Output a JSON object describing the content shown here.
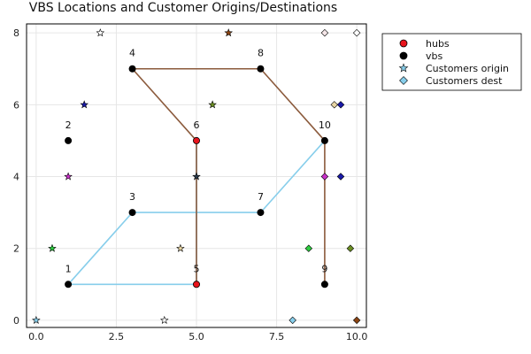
{
  "chart_data": {
    "type": "scatter",
    "title": "VBS Locations and Customer Origins/Destinations",
    "xlabel": "",
    "ylabel": "",
    "xlim": [
      -0.3,
      10.3
    ],
    "ylim": [
      -0.2,
      8.25
    ],
    "xticks": [
      0,
      2.5,
      5,
      7.5,
      10
    ],
    "xtick_labels": [
      "0.0",
      "2.5",
      "5.0",
      "7.5",
      "10.0"
    ],
    "yticks": [
      0,
      2,
      4,
      6,
      8
    ],
    "ytick_labels": [
      "0",
      "2",
      "4",
      "6",
      "8"
    ],
    "grid": true,
    "legend_position": "outer-top-right",
    "legend": [
      {
        "label": "hubs",
        "marker": "circle",
        "color": "#e8141c"
      },
      {
        "label": "vbs",
        "marker": "circle",
        "color": "#000000"
      },
      {
        "label": "Customers origin",
        "marker": "star",
        "color": "#87ceeb"
      },
      {
        "label": "Customers dest",
        "marker": "diamond",
        "color": "#87ceeb"
      }
    ],
    "nodes": [
      {
        "id": "1",
        "x": 1,
        "y": 1,
        "hub": false
      },
      {
        "id": "2",
        "x": 1,
        "y": 5,
        "hub": false
      },
      {
        "id": "3",
        "x": 3,
        "y": 3,
        "hub": false
      },
      {
        "id": "4",
        "x": 3,
        "y": 7,
        "hub": false
      },
      {
        "id": "5",
        "x": 5,
        "y": 1,
        "hub": true
      },
      {
        "id": "6",
        "x": 5,
        "y": 5,
        "hub": true
      },
      {
        "id": "7",
        "x": 7,
        "y": 3,
        "hub": false
      },
      {
        "id": "8",
        "x": 7,
        "y": 7,
        "hub": false
      },
      {
        "id": "9",
        "x": 9,
        "y": 1,
        "hub": false
      },
      {
        "id": "10",
        "x": 9,
        "y": 5,
        "hub": false
      }
    ],
    "routes": [
      {
        "color": "#87ceeb",
        "points": [
          [
            1,
            1
          ],
          [
            5,
            1
          ]
        ]
      },
      {
        "color": "#87ceeb",
        "points": [
          [
            1,
            1
          ],
          [
            3,
            3
          ],
          [
            7,
            3
          ],
          [
            9,
            5
          ]
        ]
      },
      {
        "color": "#87ceeb",
        "points": [
          [
            5,
            1
          ],
          [
            5,
            5
          ]
        ]
      },
      {
        "color": "#8b5a3c",
        "points": [
          [
            5,
            1
          ],
          [
            5,
            5
          ],
          [
            3,
            7
          ],
          [
            7,
            7
          ],
          [
            9,
            5
          ],
          [
            9,
            1
          ]
        ]
      }
    ],
    "origins": [
      {
        "x": 0,
        "y": 0,
        "color": "#87ceeb"
      },
      {
        "x": 4,
        "y": 0,
        "color": "#ffffff"
      },
      {
        "x": 0.5,
        "y": 2,
        "color": "#2ecc40"
      },
      {
        "x": 4.5,
        "y": 2,
        "color": "#e8d5a3"
      },
      {
        "x": 1,
        "y": 4,
        "color": "#c832c8"
      },
      {
        "x": 5,
        "y": 4,
        "color": "#2b3a4a"
      },
      {
        "x": 1.5,
        "y": 6,
        "color": "#1a1aa8"
      },
      {
        "x": 5.5,
        "y": 6,
        "color": "#6b8e23"
      },
      {
        "x": 2,
        "y": 8,
        "color": "#ffffff"
      },
      {
        "x": 6,
        "y": 8,
        "color": "#8b4513"
      }
    ],
    "destinations": [
      {
        "x": 8,
        "y": 0,
        "color": "#87ceeb"
      },
      {
        "x": 10,
        "y": 0,
        "color": "#8b4513"
      },
      {
        "x": 8.5,
        "y": 2,
        "color": "#2ecc40"
      },
      {
        "x": 9.8,
        "y": 2,
        "color": "#6b8e23"
      },
      {
        "x": 9,
        "y": 4,
        "color": "#c832c8"
      },
      {
        "x": 9.5,
        "y": 4,
        "color": "#1a1aa8"
      },
      {
        "x": 9.3,
        "y": 6,
        "color": "#e8d5a3"
      },
      {
        "x": 9.5,
        "y": 6,
        "color": "#1a1aa8"
      },
      {
        "x": 9,
        "y": 8,
        "color": "#f5e6e8"
      },
      {
        "x": 10,
        "y": 8,
        "color": "#ffffff"
      }
    ]
  }
}
